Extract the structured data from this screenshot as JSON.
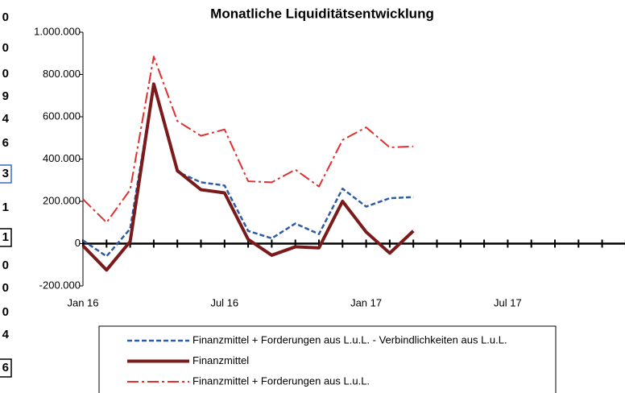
{
  "side_cells": [
    "0",
    "0",
    "0",
    "9",
    "4",
    "6",
    "3",
    "1",
    "1",
    "0",
    "0",
    "0",
    "4",
    "6"
  ],
  "chart_data": {
    "type": "line",
    "title": "Monatliche Liquiditätsentwicklung",
    "categories": [
      "Jan 16",
      null,
      null,
      null,
      null,
      null,
      "Jul 16",
      null,
      null,
      null,
      null,
      null,
      "Jan 17",
      null,
      null,
      null,
      null,
      null,
      "Jul 17",
      null,
      null,
      null,
      null,
      null
    ],
    "series": [
      {
        "name": "Finanzmittel + Forderungen aus L.u.L. - Verbindlichkeiten aus L.u.L.",
        "color": "#2e5aa8",
        "dash": "dashed",
        "values": [
          15000,
          -60000,
          70000,
          750000,
          340000,
          290000,
          275000,
          60000,
          25000,
          95000,
          45000,
          260000,
          175000,
          215000,
          220000,
          null,
          null,
          null,
          null,
          null,
          null,
          null,
          null,
          null
        ]
      },
      {
        "name": "Finanzmittel",
        "color": "#7b1a1a",
        "dash": "solid",
        "values": [
          -10000,
          -125000,
          10000,
          755000,
          345000,
          255000,
          240000,
          20000,
          -55000,
          -15000,
          -20000,
          200000,
          55000,
          -45000,
          60000,
          null,
          null,
          null,
          null,
          null,
          null,
          null,
          null,
          null
        ]
      },
      {
        "name": "Finanzmittel + Forderungen aus L.u.L.",
        "color": "#e03030",
        "dash": "dashdot",
        "values": [
          210000,
          100000,
          255000,
          885000,
          580000,
          510000,
          540000,
          295000,
          290000,
          350000,
          270000,
          490000,
          550000,
          455000,
          460000,
          null,
          null,
          null,
          null,
          null,
          null,
          null,
          null,
          null
        ]
      }
    ],
    "ylim": [
      -200000,
      1000000
    ],
    "yticks": [
      {
        "value": -200000,
        "label": "-200.000"
      },
      0,
      {
        "value": 200000,
        "label": "200.000"
      },
      {
        "value": 400000,
        "label": "400.000"
      },
      {
        "value": 600000,
        "label": "600.000"
      },
      {
        "value": 800000,
        "label": "800.000"
      },
      {
        "value": 1000000,
        "label": "1.000.000"
      }
    ],
    "legend": "bottom"
  }
}
